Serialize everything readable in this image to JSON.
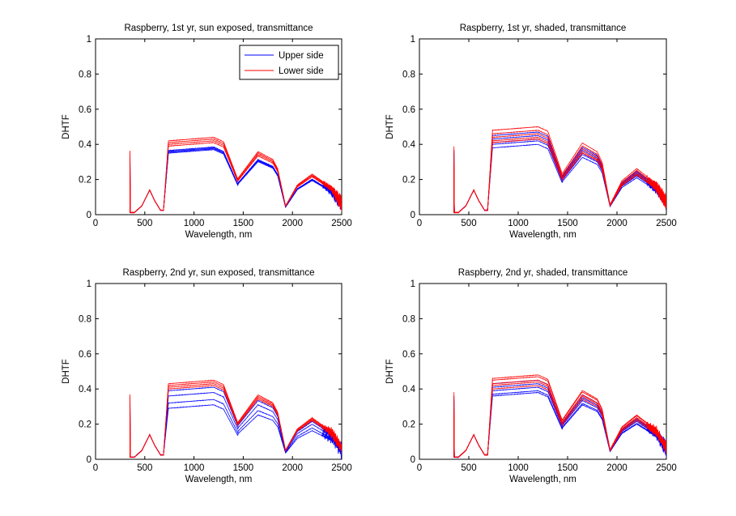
{
  "chart_data": [
    {
      "type": "line",
      "title": "Raspberry, 1st yr, sun exposed, transmittance",
      "xlabel": "Wavelength, nm",
      "ylabel": "DHTF",
      "xlim": [
        0,
        2500
      ],
      "ylim": [
        0,
        1
      ],
      "xticks": [
        0,
        500,
        1000,
        1500,
        2000,
        2500
      ],
      "yticks": [
        0,
        0.2,
        0.4,
        0.6,
        0.8,
        1
      ],
      "legend": {
        "placement": "top-right",
        "entries": [
          "Upper side",
          "Lower side"
        ]
      },
      "series": [
        {
          "name": "Upper side",
          "color": "#0000ff",
          "plateau_values": [
            0.37,
            0.375,
            0.38,
            0.385
          ]
        },
        {
          "name": "Lower side",
          "color": "#ff0000",
          "plateau_values": [
            0.41,
            0.42,
            0.43,
            0.44
          ]
        }
      ]
    },
    {
      "type": "line",
      "title": "Raspberry, 1st yr, shaded, transmittance",
      "xlabel": "Wavelength, nm",
      "ylabel": "DHTF",
      "xlim": [
        0,
        2500
      ],
      "ylim": [
        0,
        1
      ],
      "xticks": [
        0,
        500,
        1000,
        1500,
        2000,
        2500
      ],
      "yticks": [
        0,
        0.2,
        0.4,
        0.6,
        0.8,
        1
      ],
      "series": [
        {
          "color": "#0000ff",
          "plateau_values": [
            0.4,
            0.42,
            0.43,
            0.45,
            0.47
          ]
        },
        {
          "color": "#ff0000",
          "plateau_values": [
            0.43,
            0.44,
            0.46,
            0.48,
            0.5
          ]
        }
      ]
    },
    {
      "type": "line",
      "title": "Raspberry, 2nd yr, sun exposed, transmittance",
      "xlabel": "Wavelength, nm",
      "ylabel": "DHTF",
      "xlim": [
        0,
        2500
      ],
      "ylim": [
        0,
        1
      ],
      "xticks": [
        0,
        500,
        1000,
        1500,
        2000,
        2500
      ],
      "yticks": [
        0,
        0.2,
        0.4,
        0.6,
        0.8,
        1
      ],
      "series": [
        {
          "color": "#0000ff",
          "plateau_values": [
            0.31,
            0.34,
            0.38,
            0.41
          ]
        },
        {
          "color": "#ff0000",
          "plateau_values": [
            0.42,
            0.43,
            0.44,
            0.45
          ]
        }
      ]
    },
    {
      "type": "line",
      "title": "Raspberry, 2nd yr, shaded, transmittance",
      "xlabel": "Wavelength, nm",
      "ylabel": "DHTF",
      "xlim": [
        0,
        2500
      ],
      "ylim": [
        0,
        1
      ],
      "xticks": [
        0,
        500,
        1000,
        1500,
        2000,
        2500
      ],
      "yticks": [
        0,
        0.2,
        0.4,
        0.6,
        0.8,
        1
      ],
      "series": [
        {
          "color": "#0000ff",
          "plateau_values": [
            0.38,
            0.39,
            0.41,
            0.43,
            0.45
          ]
        },
        {
          "color": "#ff0000",
          "plateau_values": [
            0.42,
            0.44,
            0.45,
            0.47,
            0.48
          ]
        }
      ]
    }
  ]
}
